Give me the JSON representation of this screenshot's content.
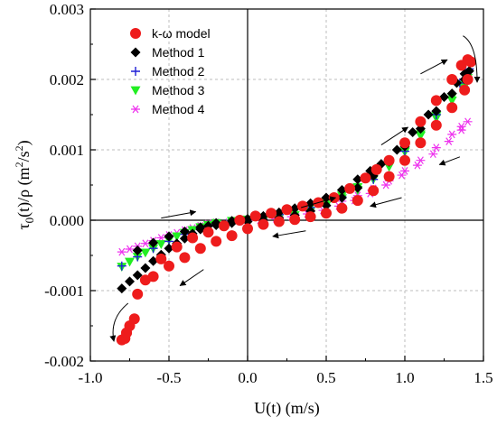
{
  "chart_data": {
    "type": "scatter",
    "xlabel": "U(t) (m/s)",
    "ylabel": "τ0(t)/ρ (m2/s2)",
    "xlim": [
      -1.0,
      1.5
    ],
    "ylim": [
      -0.002,
      0.003
    ],
    "x_ticks": [
      -1.0,
      -0.5,
      0.0,
      0.5,
      1.0,
      1.5
    ],
    "x_tick_labels": [
      "-1.0",
      "-0.5",
      "0.0",
      "0.5",
      "1.0",
      "1.5"
    ],
    "y_ticks": [
      -0.002,
      -0.001,
      0.0,
      0.001,
      0.002,
      0.003
    ],
    "y_tick_labels": [
      "-0.002",
      "-0.001",
      "0.000",
      "0.001",
      "0.002",
      "0.003"
    ],
    "grid": true,
    "legend_position": "top-left",
    "series": [
      {
        "name": "k-ω model",
        "marker": "circle",
        "color": "#ee1c1c",
        "x": [
          -0.8,
          -0.78,
          -0.77,
          -0.75,
          -0.72,
          -0.65,
          -0.55,
          -0.45,
          -0.35,
          -0.25,
          -0.15,
          -0.05,
          0.05,
          0.15,
          0.25,
          0.35,
          0.45,
          0.55,
          0.65,
          0.75,
          0.82,
          0.9,
          1.0,
          1.1,
          1.2,
          1.3,
          1.36,
          1.4,
          1.42,
          1.4,
          1.38,
          1.3,
          1.2,
          1.1,
          1.0,
          0.9,
          0.8,
          0.7,
          0.6,
          0.5,
          0.4,
          0.3,
          0.2,
          0.1,
          0.0,
          -0.1,
          -0.2,
          -0.3,
          -0.4,
          -0.5,
          -0.6,
          -0.7,
          -0.77
        ],
        "y": [
          -0.0017,
          -0.00168,
          -0.0016,
          -0.0015,
          -0.0014,
          -0.00085,
          -0.00055,
          -0.00038,
          -0.00025,
          -0.00017,
          -8e-05,
          0.0,
          6e-05,
          0.0001,
          0.00015,
          0.0002,
          0.00025,
          0.00032,
          0.00045,
          0.0006,
          0.00072,
          0.00085,
          0.0011,
          0.0014,
          0.0017,
          0.002,
          0.0022,
          0.00228,
          0.00225,
          0.002,
          0.00185,
          0.0016,
          0.00135,
          0.0011,
          0.00085,
          0.00062,
          0.00042,
          0.00028,
          0.00017,
          0.0001,
          5e-05,
          1e-05,
          -2e-05,
          -6e-05,
          -0.00012,
          -0.00022,
          -0.0003,
          -0.0004,
          -0.00053,
          -0.00065,
          -0.0008,
          -0.00105,
          -0.0016
        ]
      },
      {
        "name": "Method 1",
        "marker": "diamond",
        "color": "#000000",
        "x": [
          -0.8,
          -0.75,
          -0.7,
          -0.65,
          -0.6,
          -0.55,
          -0.5,
          -0.45,
          -0.4,
          -0.35,
          -0.3,
          -0.25,
          -0.2,
          -0.1,
          0.0,
          0.1,
          0.2,
          0.3,
          0.4,
          0.5,
          0.6,
          0.7,
          0.78,
          0.85,
          0.95,
          1.05,
          1.15,
          1.25,
          1.33,
          1.38,
          1.41,
          1.38,
          1.3,
          1.2,
          1.1,
          1.0,
          0.9,
          0.8,
          0.7,
          0.6,
          0.5,
          0.4,
          0.3,
          0.2,
          0.1,
          0.0,
          -0.1,
          -0.2,
          -0.3,
          -0.4,
          -0.5,
          -0.6,
          -0.7
        ],
        "y": [
          -0.00097,
          -0.00087,
          -0.00078,
          -0.00068,
          -0.00058,
          -0.00049,
          -0.0004,
          -0.00033,
          -0.00026,
          -0.00019,
          -0.00013,
          -8e-05,
          -4e-05,
          -1e-05,
          2e-05,
          6e-05,
          0.00011,
          0.00017,
          0.00024,
          0.00032,
          0.00043,
          0.00058,
          0.0007,
          0.0008,
          0.001,
          0.00125,
          0.0015,
          0.00175,
          0.00195,
          0.00208,
          0.00212,
          0.002,
          0.0018,
          0.00155,
          0.0013,
          0.00105,
          0.00083,
          0.00063,
          0.00046,
          0.00032,
          0.00021,
          0.00013,
          7e-05,
          3e-05,
          0.0,
          -2e-05,
          -4e-05,
          -7e-05,
          -0.0001,
          -0.00016,
          -0.00023,
          -0.00032,
          -0.00043
        ]
      },
      {
        "name": "Method 2",
        "marker": "plus",
        "color": "#1f1fd6",
        "x": [
          -0.8,
          -0.7,
          -0.6,
          -0.5,
          -0.4,
          -0.3,
          -0.2,
          -0.1,
          0.0,
          0.2,
          0.4,
          0.6,
          0.8,
          1.0,
          1.2,
          1.35,
          1.41
        ],
        "y": [
          -0.00065,
          -0.00052,
          -0.0004,
          -0.0003,
          -0.0002,
          -0.00012,
          -6e-05,
          -2e-05,
          1e-05,
          8e-05,
          0.00018,
          0.00033,
          0.00058,
          0.00098,
          0.0015,
          0.00195,
          0.00215
        ]
      },
      {
        "name": "Method 3",
        "marker": "triangle-down",
        "color": "#22ee22",
        "x": [
          -0.8,
          -0.75,
          -0.7,
          -0.65,
          -0.6,
          -0.55,
          -0.5,
          -0.45,
          -0.4,
          -0.35,
          -0.3,
          -0.25,
          -0.2,
          -0.1,
          0.0,
          0.1,
          0.2,
          0.3,
          0.4,
          0.5,
          0.6,
          0.7,
          0.8,
          0.9,
          1.0,
          1.1,
          1.2,
          1.3,
          1.36,
          1.4,
          1.38,
          1.3,
          1.2,
          1.1,
          1.0,
          0.9,
          0.8,
          0.7,
          0.6,
          0.5,
          0.4,
          0.3,
          0.2,
          0.1,
          0.0,
          -0.1,
          -0.2
        ],
        "y": [
          -0.00066,
          -0.00059,
          -0.00052,
          -0.00046,
          -0.0004,
          -0.00034,
          -0.00028,
          -0.00023,
          -0.00018,
          -0.00014,
          -0.0001,
          -7e-05,
          -4e-05,
          -1e-05,
          1e-05,
          4e-05,
          8e-05,
          0.00013,
          0.00019,
          0.00026,
          0.00035,
          0.00047,
          0.00061,
          0.00078,
          0.00098,
          0.00122,
          0.00148,
          0.00175,
          0.00192,
          0.00202,
          0.0019,
          0.0017,
          0.00145,
          0.0012,
          0.00097,
          0.00076,
          0.00058,
          0.00043,
          0.00031,
          0.00021,
          0.00013,
          7e-05,
          3e-05,
          0.0,
          -2e-05,
          -4e-05,
          -6e-05
        ]
      },
      {
        "name": "Method 4",
        "marker": "asterisk",
        "color": "#ee33ee",
        "x": [
          -0.8,
          -0.75,
          -0.7,
          -0.65,
          -0.6,
          -0.55,
          -0.5,
          -0.45,
          -0.4,
          -0.35,
          -0.3,
          -0.25,
          -0.2,
          -0.1,
          0.0,
          0.1,
          0.2,
          0.3,
          0.4,
          0.5,
          0.6,
          0.7,
          0.8,
          0.9,
          1.0,
          1.1,
          1.2,
          1.3,
          1.36,
          1.4,
          1.36,
          1.28,
          1.18,
          1.08,
          0.98,
          0.88,
          0.78,
          0.68,
          0.58,
          0.48,
          0.38,
          0.28,
          0.18,
          0.08,
          -0.02,
          -0.12,
          -0.22
        ],
        "y": [
          -0.00045,
          -0.00041,
          -0.00037,
          -0.00033,
          -0.00029,
          -0.00025,
          -0.00021,
          -0.00018,
          -0.00014,
          -0.00011,
          -8e-05,
          -5e-05,
          -3e-05,
          -1e-05,
          0.0,
          2e-05,
          5e-05,
          9e-05,
          0.00014,
          0.0002,
          0.00027,
          0.00035,
          0.00045,
          0.00056,
          0.0007,
          0.00085,
          0.00103,
          0.00122,
          0.00133,
          0.0014,
          0.00128,
          0.00112,
          0.00094,
          0.00078,
          0.00064,
          0.0005,
          0.00038,
          0.00028,
          0.0002,
          0.00014,
          9e-05,
          5e-05,
          2e-05,
          0.0,
          -2e-05,
          -3e-05,
          -4e-05
        ]
      }
    ],
    "annotations": [
      {
        "type": "arrow",
        "from": [
          -0.55,
          3e-05
        ],
        "to": [
          -0.33,
          0.00012
        ]
      },
      {
        "type": "arrow",
        "from": [
          0.34,
          0.00018
        ],
        "to": [
          0.56,
          0.00032
        ]
      },
      {
        "type": "arrow",
        "from": [
          0.85,
          0.00107
        ],
        "to": [
          1.02,
          0.00132
        ]
      },
      {
        "type": "arrow",
        "from": [
          1.1,
          0.00208
        ],
        "to": [
          1.27,
          0.00228
        ]
      },
      {
        "type": "arrow",
        "from": [
          1.35,
          0.0009
        ],
        "to": [
          1.22,
          0.00079
        ]
      },
      {
        "type": "arrow",
        "from": [
          0.98,
          0.00032
        ],
        "to": [
          0.78,
          0.0002
        ]
      },
      {
        "type": "arrow",
        "from": [
          0.37,
          -0.00015
        ],
        "to": [
          0.16,
          -0.00023
        ]
      },
      {
        "type": "arrow",
        "from": [
          -0.28,
          -0.0007
        ],
        "to": [
          -0.43,
          -0.00093
        ]
      },
      {
        "type": "curved-arrow",
        "path": [
          [
            1.37,
            0.00262
          ],
          [
            1.46,
            0.0025
          ],
          [
            1.46,
            0.00196
          ]
        ]
      },
      {
        "type": "curved-arrow",
        "path": [
          [
            -0.76,
            -0.00118
          ],
          [
            -0.88,
            -0.0014
          ],
          [
            -0.85,
            -0.00172
          ]
        ]
      }
    ]
  }
}
